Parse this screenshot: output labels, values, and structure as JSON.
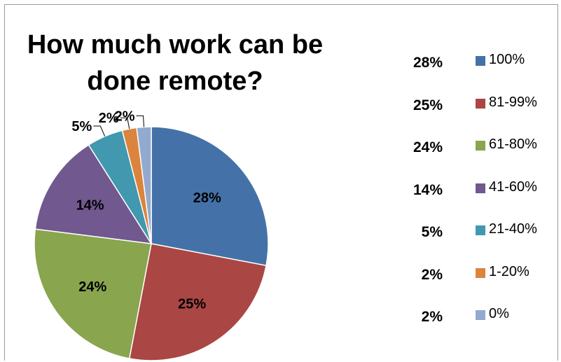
{
  "chart_data": {
    "type": "pie",
    "title": "How much work can be done remote?",
    "slices": [
      {
        "label": "100%",
        "value": 28,
        "display": "28%",
        "color": "#4472A8"
      },
      {
        "label": "81-99%",
        "value": 25,
        "display": "25%",
        "color": "#AA4643"
      },
      {
        "label": "61-80%",
        "value": 24,
        "display": "24%",
        "color": "#89A54E"
      },
      {
        "label": "41-60%",
        "value": 14,
        "display": "14%",
        "color": "#71588F"
      },
      {
        "label": "21-40%",
        "value": 5,
        "display": "5%",
        "color": "#4198AF"
      },
      {
        "label": "1-20%",
        "value": 2,
        "display": "2%",
        "color": "#DB843D"
      },
      {
        "label": "0%",
        "value": 2,
        "display": "2%",
        "color": "#93A9CF"
      }
    ],
    "legend_placement": "right"
  }
}
